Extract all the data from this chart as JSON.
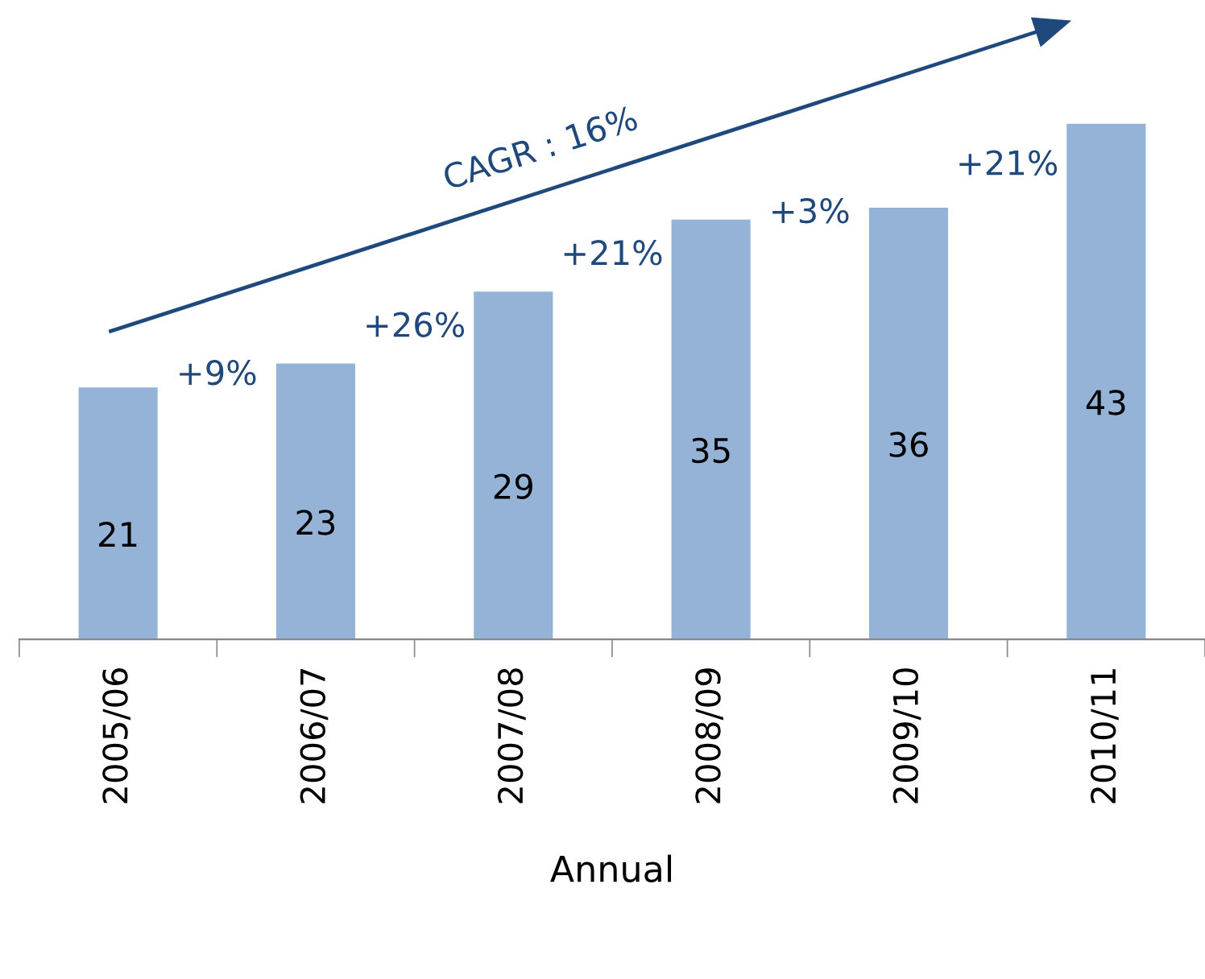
{
  "chart_data": {
    "type": "bar",
    "xlabel": "Annual",
    "categories": [
      "2005/06",
      "2006/07",
      "2007/08",
      "2008/09",
      "2009/10",
      "2010/11"
    ],
    "values": [
      21,
      23,
      29,
      35,
      36,
      43
    ],
    "color": "#95b3d7",
    "data_labels": true,
    "grid": false,
    "annotations": [
      "CAGR : 16%",
      "+9%",
      "+26%",
      "+21%",
      "+3%",
      "+21%"
    ]
  }
}
